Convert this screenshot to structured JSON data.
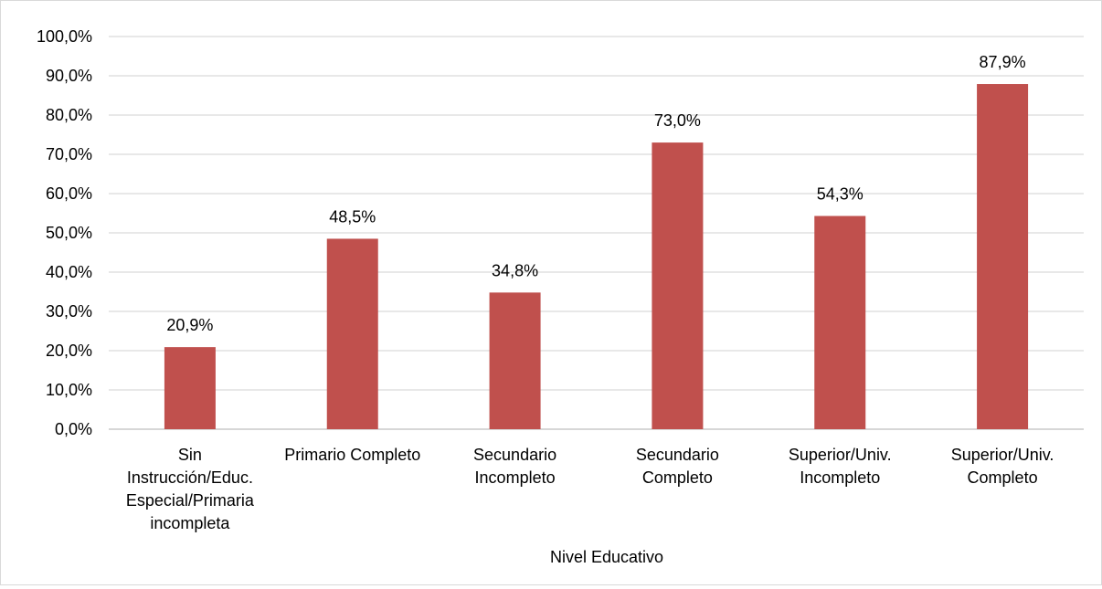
{
  "chart_data": {
    "type": "bar",
    "categories": [
      [
        "Sin",
        "Instrucción/Educ.",
        "Especial/Primaria",
        "incompleta"
      ],
      [
        "Primario Completo"
      ],
      [
        "Secundario",
        "Incompleto"
      ],
      [
        "Secundario",
        "Completo"
      ],
      [
        "Superior/Univ.",
        "Incompleto"
      ],
      [
        "Superior/Univ.",
        "Completo"
      ]
    ],
    "values": [
      20.9,
      48.5,
      34.8,
      73.0,
      54.3,
      87.9
    ],
    "data_labels": [
      "20,9%",
      "48,5%",
      "34,8%",
      "73,0%",
      "54,3%",
      "87,9%"
    ],
    "y_ticks": [
      "0,0%",
      "10,0%",
      "20,0%",
      "30,0%",
      "40,0%",
      "50,0%",
      "60,0%",
      "70,0%",
      "80,0%",
      "90,0%",
      "100,0%"
    ],
    "ylim": [
      0,
      100
    ],
    "xlabel": "Nivel Educativo",
    "grid": true,
    "legend": "none",
    "colors": {
      "bar": "#c0504d",
      "grid": "#d9d9d9",
      "axis": "#bfbfbf"
    }
  }
}
